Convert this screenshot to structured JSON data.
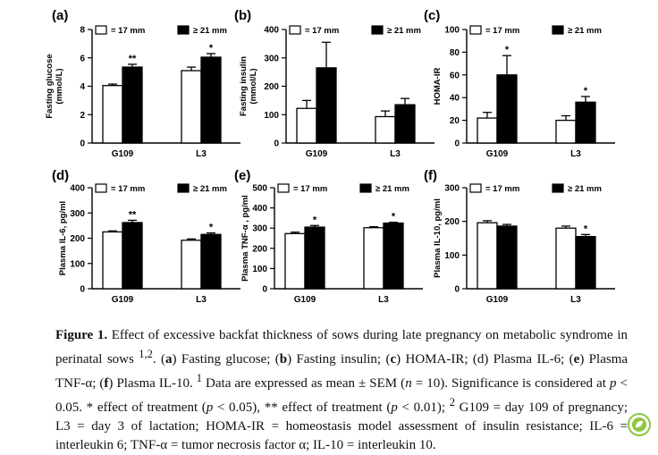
{
  "chart_data": [
    {
      "type": "bar",
      "panel": "(a)",
      "categories": [
        "G109",
        "L3"
      ],
      "series": [
        {
          "name": "= 17 mm",
          "values": [
            4.05,
            5.1
          ],
          "errors": [
            0.1,
            0.25
          ],
          "fill": "#ffffff"
        },
        {
          "name": "≥ 21 mm",
          "values": [
            5.35,
            6.05
          ],
          "errors": [
            0.2,
            0.25
          ],
          "fill": "#000000"
        }
      ],
      "significance": [
        "**",
        "*"
      ],
      "ylabel": [
        "Fasting glucose",
        "(mmol/L)"
      ],
      "ylim": [
        0,
        8
      ],
      "yticks": [
        0,
        2,
        4,
        6,
        8
      ]
    },
    {
      "type": "bar",
      "panel": "(b)",
      "categories": [
        "G109",
        "L3"
      ],
      "series": [
        {
          "name": "= 17 mm",
          "values": [
            122,
            93
          ],
          "errors": [
            28,
            20
          ],
          "fill": "#ffffff"
        },
        {
          "name": "≥ 21 mm",
          "values": [
            265,
            135
          ],
          "errors": [
            90,
            22
          ],
          "fill": "#000000"
        }
      ],
      "significance": [
        "",
        ""
      ],
      "ylabel": [
        "Fasting insulin",
        "(mmol/L)"
      ],
      "ylim": [
        0,
        400
      ],
      "yticks": [
        0,
        100,
        200,
        300,
        400
      ]
    },
    {
      "type": "bar",
      "panel": "(c)",
      "categories": [
        "G109",
        "L3"
      ],
      "series": [
        {
          "name": "= 17 mm",
          "values": [
            22,
            20
          ],
          "errors": [
            5,
            4
          ],
          "fill": "#ffffff"
        },
        {
          "name": "≥ 21 mm",
          "values": [
            60,
            36
          ],
          "errors": [
            17,
            5
          ],
          "fill": "#000000"
        }
      ],
      "significance": [
        "*",
        "*"
      ],
      "ylabel": [
        "HOMA-IR"
      ],
      "ylim": [
        0,
        100
      ],
      "yticks": [
        0,
        20,
        40,
        60,
        80,
        100
      ]
    },
    {
      "type": "bar",
      "panel": "(d)",
      "categories": [
        "G109",
        "L3"
      ],
      "series": [
        {
          "name": "= 17 mm",
          "values": [
            225,
            192
          ],
          "errors": [
            4,
            5
          ],
          "fill": "#ffffff"
        },
        {
          "name": "≥ 21 mm",
          "values": [
            262,
            215
          ],
          "errors": [
            9,
            6
          ],
          "fill": "#000000"
        }
      ],
      "significance": [
        "**",
        "*"
      ],
      "ylabel": [
        "Plasma IL-6, pg/ml"
      ],
      "ylim": [
        0,
        400
      ],
      "yticks": [
        0,
        100,
        200,
        300,
        400
      ]
    },
    {
      "type": "bar",
      "panel": "(e)",
      "categories": [
        "G109",
        "L3"
      ],
      "series": [
        {
          "name": "= 17 mm",
          "values": [
            273,
            302
          ],
          "errors": [
            7,
            5
          ],
          "fill": "#ffffff"
        },
        {
          "name": "≥ 21 mm",
          "values": [
            305,
            325
          ],
          "errors": [
            8,
            4
          ],
          "fill": "#000000"
        }
      ],
      "significance": [
        "*",
        "*"
      ],
      "ylabel": [
        "Plasma TNF-α , pg/ml"
      ],
      "ylim": [
        0,
        500
      ],
      "yticks": [
        0,
        100,
        200,
        300,
        400,
        500
      ]
    },
    {
      "type": "bar",
      "panel": "(f)",
      "categories": [
        "G109",
        "L3"
      ],
      "series": [
        {
          "name": "= 17 mm",
          "values": [
            196,
            180
          ],
          "errors": [
            6,
            6
          ],
          "fill": "#ffffff"
        },
        {
          "name": "≥ 21 mm",
          "values": [
            186,
            155
          ],
          "errors": [
            5,
            6
          ],
          "fill": "#000000"
        }
      ],
      "significance": [
        "",
        "*"
      ],
      "ylabel": [
        "Plasma IL-10, pg/ml"
      ],
      "ylim": [
        0,
        300
      ],
      "yticks": [
        0,
        100,
        200,
        300
      ]
    }
  ],
  "caption": {
    "figure_label": "Figure 1.",
    "title_text": " Effect of excessive backfat thickness of sows during late pregnancy on metabolic syndrome in perinatal sows",
    "title_sup": "1,2",
    "period_a": ". (",
    "a": "a",
    "a_text": ") Fasting glucose; (",
    "b": "b",
    "b_text": ") Fasting insulin; (",
    "c": "c",
    "c_text": ") HOMA-IR; (d) Plasma IL-6; (",
    "e": "e",
    "e_text": ") Plasma TNF-α; (",
    "f": "f",
    "f_text": ") Plasma IL-10. ",
    "note1_sup": "1",
    "note1_text": " Data are expressed as mean ± SEM (",
    "n_italic": "n",
    "n_text": " = 10). Significance is considered at ",
    "p1_italic": "p",
    "p1_text": " < 0.05. * effect of treatment (",
    "p2_italic": "p",
    "p2_text": " < 0.05), ** effect of treatment (",
    "p3_italic": "p",
    "p3_text": " < 0.01); ",
    "note2_sup": "2",
    "note2_text": " G109 = day 109 of pregnancy; L3 = day 3 of lactation; HOMA-IR = homeostasis model assessment of insulin resistance; IL-6 = interleukin 6; TNF-α = tumor necrosis factor α; IL-10 = interleukin 10."
  },
  "badge": {
    "icon": "leaf-badge-icon",
    "color": "#8dc63f"
  }
}
